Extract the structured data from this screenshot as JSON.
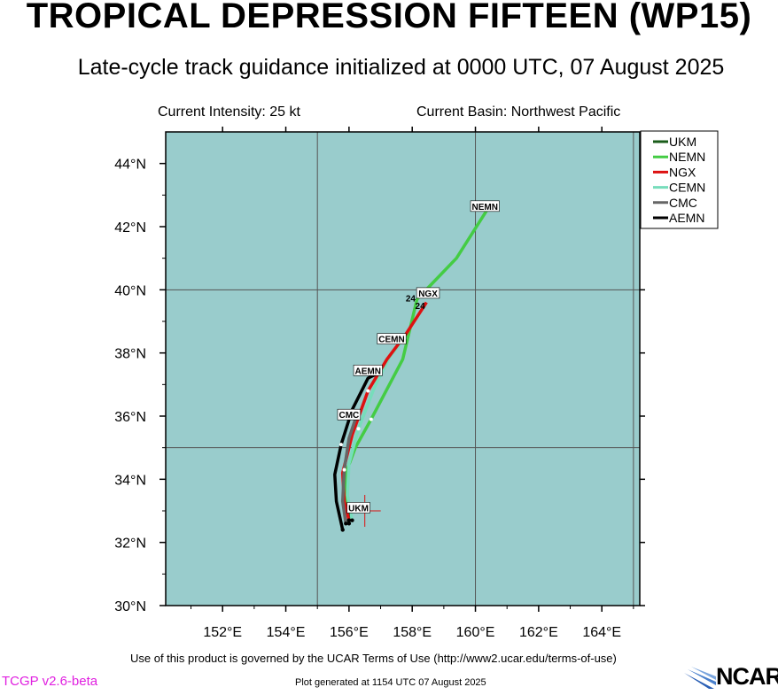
{
  "header": {
    "title": "TROPICAL DEPRESSION FIFTEEN (WP15)",
    "subtitle": "Late-cycle track guidance initialized at 0000 UTC, 07 August 2025",
    "current_intensity": "Current Intensity: 25 kt",
    "current_basin": "Current Basin: Northwest Pacific"
  },
  "footer": {
    "terms": "Use of this product is governed by the UCAR Terms of Use (http://www2.ucar.edu/terms-of-use)",
    "version": "TCGP v2.6-beta",
    "generated": "Plot generated at 1154 UTC   07 August 2025",
    "logo_text": "NCAR"
  },
  "colors": {
    "ocean": "#99cccc",
    "UKM": "#1a5c1a",
    "NEMN": "#44cc44",
    "NGX": "#dd1111",
    "CEMN": "#77ddbb",
    "CMC": "#666666",
    "AEMN": "#000000",
    "version_text": "#e020e0"
  },
  "chart_data": {
    "type": "line",
    "xlim": [
      150.2,
      165.2
    ],
    "ylim": [
      30,
      45
    ],
    "x_ticks": [
      152,
      154,
      156,
      158,
      160,
      162,
      164
    ],
    "x_tick_labels": [
      "152°E",
      "154°E",
      "156°E",
      "158°E",
      "160°E",
      "162°E",
      "164°E"
    ],
    "y_ticks": [
      30,
      32,
      34,
      36,
      38,
      40,
      42,
      44
    ],
    "y_tick_labels": [
      "30°N",
      "32°N",
      "34°N",
      "36°N",
      "38°N",
      "40°N",
      "42°N",
      "44°N"
    ],
    "gridlines": {
      "lon": [
        155,
        160,
        165
      ],
      "lat": [
        35,
        40
      ]
    },
    "legend_position": "right-top",
    "initial_position": {
      "lon": 156.5,
      "lat": 33.0
    },
    "series": [
      {
        "name": "UKM",
        "color": "#1a5c1a",
        "points": [
          [
            156.0,
            32.6
          ],
          [
            155.95,
            33.2
          ]
        ],
        "label": "UKM",
        "label_at": [
          156.3,
          33.1
        ]
      },
      {
        "name": "NEMN",
        "color": "#44cc44",
        "points": [
          [
            156.0,
            32.7
          ],
          [
            155.9,
            33.3
          ],
          [
            155.9,
            34.2
          ],
          [
            156.2,
            35.0
          ],
          [
            156.7,
            35.9
          ],
          [
            157.7,
            37.8
          ],
          [
            158.15,
            39.7
          ],
          [
            159.4,
            41.0
          ],
          [
            160.35,
            42.5
          ]
        ],
        "label": "NEMN",
        "label_at": [
          160.3,
          42.65
        ]
      },
      {
        "name": "NGX",
        "color": "#dd1111",
        "points": [
          [
            156.0,
            32.7
          ],
          [
            155.85,
            33.3
          ],
          [
            155.8,
            34.2
          ],
          [
            156.1,
            35.4
          ],
          [
            156.6,
            36.8
          ],
          [
            157.2,
            37.8
          ],
          [
            157.8,
            38.6
          ],
          [
            158.45,
            39.6
          ]
        ],
        "label": "NGX",
        "label_at": [
          158.5,
          39.9
        ]
      },
      {
        "name": "CEMN",
        "color": "#77ddbb",
        "points": [
          [
            156.1,
            32.7
          ],
          [
            155.95,
            33.5
          ],
          [
            156.0,
            34.5
          ],
          [
            156.3,
            35.6
          ],
          [
            156.8,
            36.9
          ],
          [
            157.3,
            37.9
          ],
          [
            157.8,
            38.5
          ]
        ],
        "label": "CEMN",
        "label_at": [
          157.35,
          38.45
        ]
      },
      {
        "name": "CMC",
        "color": "#666666",
        "points": [
          [
            155.9,
            32.6
          ],
          [
            155.8,
            33.3
          ],
          [
            155.85,
            34.3
          ],
          [
            156.0,
            35.3
          ],
          [
            156.2,
            35.9
          ]
        ],
        "label": "CMC",
        "label_at": [
          156.0,
          36.05
        ]
      },
      {
        "name": "AEMN",
        "color": "#000000",
        "points": [
          [
            155.8,
            32.4
          ],
          [
            155.6,
            33.3
          ],
          [
            155.55,
            34.15
          ],
          [
            155.75,
            35.1
          ],
          [
            156.1,
            36.2
          ],
          [
            156.6,
            37.2
          ],
          [
            157.0,
            37.4
          ]
        ],
        "label": "AEMN",
        "label_at": [
          156.6,
          37.45
        ]
      }
    ],
    "time_labels": [
      {
        "text": "24",
        "lon": 157.95,
        "lat": 39.75
      },
      {
        "text": "24",
        "lon": 158.25,
        "lat": 39.5
      }
    ]
  }
}
